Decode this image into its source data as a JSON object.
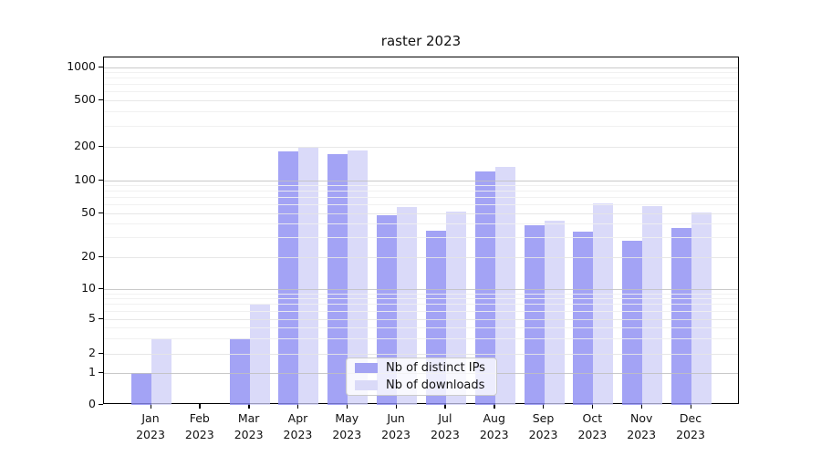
{
  "chart_data": {
    "type": "bar",
    "title": "raster 2023",
    "scale": "symlog",
    "grid": "on",
    "legend_position": "lower center",
    "categories": [
      "Jan",
      "Feb",
      "Mar",
      "Apr",
      "May",
      "Jun",
      "Jul",
      "Aug",
      "Sep",
      "Oct",
      "Nov",
      "Dec"
    ],
    "category_year": "2023",
    "x_tick_labels": [
      "Jan 2023",
      "Feb 2023",
      "Mar 2023",
      "Apr 2023",
      "May 2023",
      "Jun 2023",
      "Jul 2023",
      "Aug 2023",
      "Sep 2023",
      "Oct 2023",
      "Nov 2023",
      "Dec 2023"
    ],
    "y_ticks": [
      0,
      1,
      2,
      5,
      10,
      20,
      50,
      100,
      200,
      500,
      1000
    ],
    "ylim": [
      0,
      1200
    ],
    "series": [
      {
        "name": "Nb of distinct IPs",
        "color": "#a3a3f3",
        "fill": "rgba(140,140,242,0.8)",
        "values": [
          1,
          0,
          3,
          183,
          173,
          48,
          35,
          120,
          39,
          34,
          28,
          37
        ]
      },
      {
        "name": "Nb of downloads",
        "color": "#dadaf8",
        "fill": "rgba(206,206,247,0.75)",
        "values": [
          3,
          0,
          7,
          196,
          186,
          57,
          52,
          132,
          43,
          62,
          58,
          51
        ]
      }
    ]
  }
}
